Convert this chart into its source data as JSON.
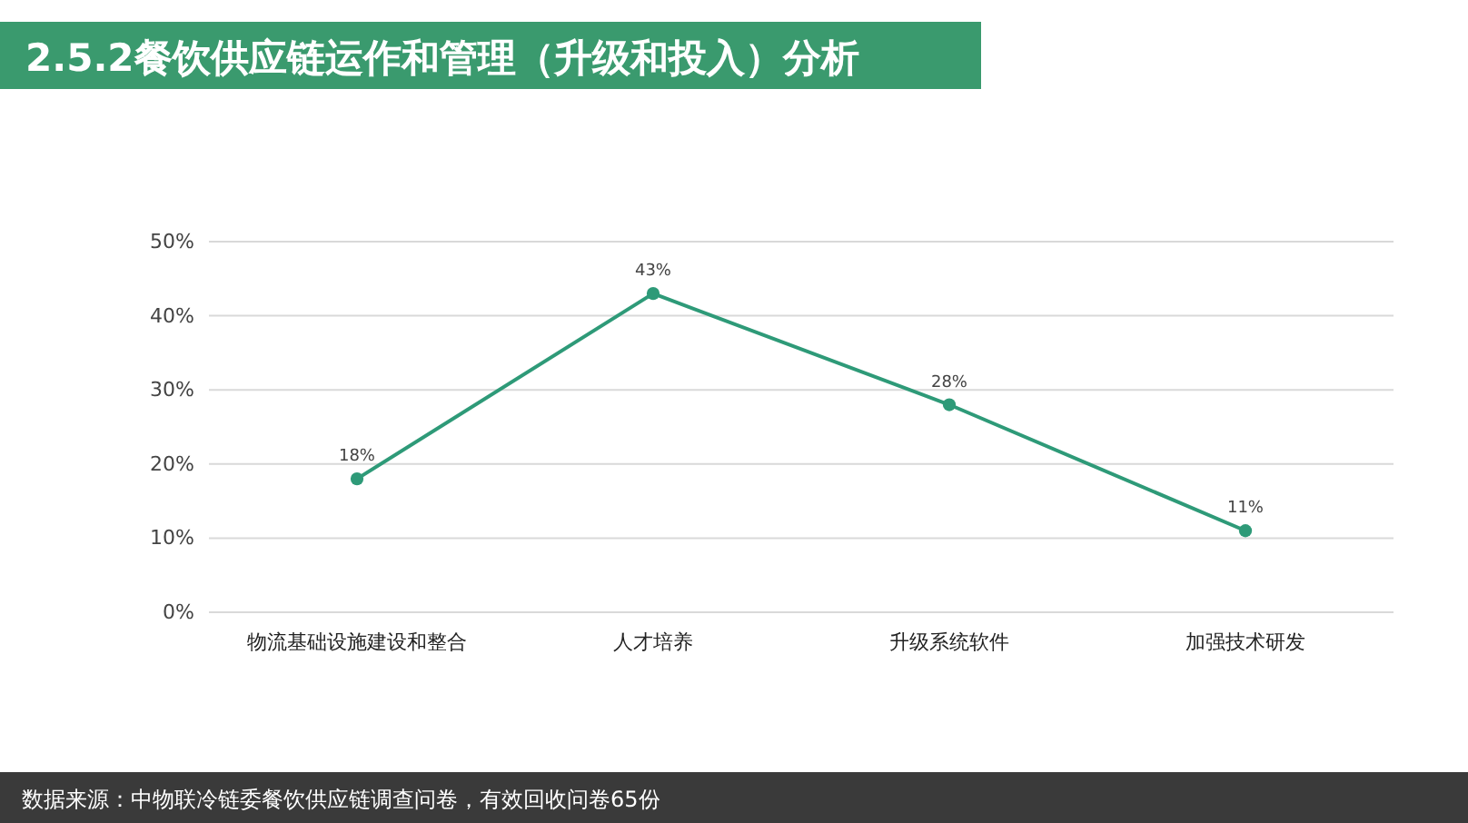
{
  "chart_data": {
    "type": "line",
    "title": "2.5.2餐饮供应链运作和管理（升级和投入）分析",
    "categories": [
      "物流基础设施建设和整合",
      "人才培养",
      "升级系统软件",
      "加强技术研发"
    ],
    "series": [
      {
        "color": "#2e9a78",
        "values": [
          18,
          43,
          28,
          11
        ],
        "value_labels": [
          "18%",
          "43%",
          "28%",
          "11%"
        ]
      }
    ],
    "ylim": [
      0,
      50
    ],
    "yticks": [
      {
        "value": 0,
        "label": "0%"
      },
      {
        "value": 10,
        "label": "10%"
      },
      {
        "value": 20,
        "label": "20%"
      },
      {
        "value": 30,
        "label": "30%"
      },
      {
        "value": 40,
        "label": "40%"
      },
      {
        "value": 50,
        "label": "50%"
      }
    ],
    "grid": "y",
    "marker": "circle",
    "line_style": "solid",
    "annotations": [
      "数据来源：中物联冷链委餐饮供应链调查问卷，有效回收问卷65份"
    ]
  }
}
